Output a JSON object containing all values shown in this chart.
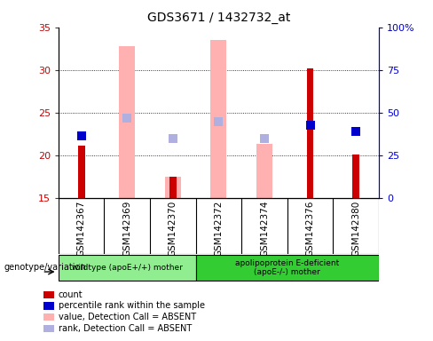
{
  "title": "GDS3671 / 1432732_at",
  "samples": [
    "GSM142367",
    "GSM142369",
    "GSM142370",
    "GSM142372",
    "GSM142374",
    "GSM142376",
    "GSM142380"
  ],
  "count_values": [
    21.1,
    null,
    17.5,
    null,
    null,
    30.2,
    20.1
  ],
  "percentile_rank": [
    22.3,
    null,
    null,
    null,
    null,
    23.5,
    22.8
  ],
  "value_absent": [
    null,
    32.8,
    17.5,
    33.5,
    21.3,
    null,
    null
  ],
  "rank_absent": [
    null,
    24.3,
    21.9,
    23.9,
    21.9,
    null,
    null
  ],
  "ylim_left": [
    15,
    35
  ],
  "ylim_right": [
    0,
    100
  ],
  "yticks_left": [
    15,
    20,
    25,
    30,
    35
  ],
  "ytick_labels_right": [
    "0",
    "25",
    "50",
    "75",
    "100%"
  ],
  "left_color": "#cc0000",
  "right_color": "#0000cc",
  "pink_color": "#ffb0b0",
  "lavender_color": "#b0b0e0",
  "wildtype_color": "#90ee90",
  "apoe_color": "#33cc33",
  "wildtype_label": "wildtype (apoE+/+) mother",
  "apoe_label": "apolipoprotein E-deficient\n(apoE-/-) mother",
  "genotype_label": "genotype/variation",
  "legend_items": [
    {
      "color": "#cc0000",
      "label": "count"
    },
    {
      "color": "#0000cc",
      "label": "percentile rank within the sample"
    },
    {
      "color": "#ffb0b0",
      "label": "value, Detection Call = ABSENT"
    },
    {
      "color": "#b0b0e0",
      "label": "rank, Detection Call = ABSENT"
    }
  ],
  "wildtype_count": 3,
  "apoe_count": 4,
  "pink_bar_width": 0.35,
  "red_bar_width": 0.15,
  "dot_size": 55
}
